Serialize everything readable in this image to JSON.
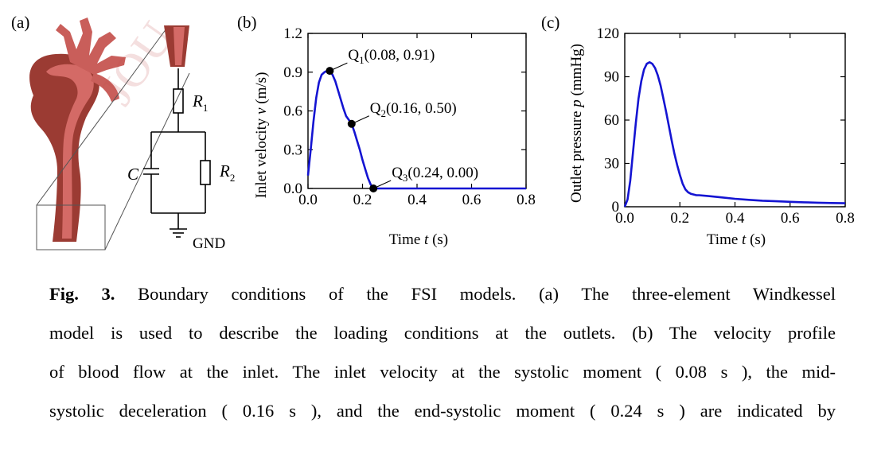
{
  "panels": {
    "a": {
      "label": "(a)",
      "r1_symbol": "R",
      "r1_sub": "1",
      "r2_symbol": "R",
      "r2_sub": "2",
      "c_symbol": "C",
      "gnd_label": "GND",
      "watermark": "JOU"
    },
    "b": {
      "label": "(b)"
    },
    "c": {
      "label": "(c)"
    }
  },
  "chart_data": [
    {
      "panel": "b",
      "type": "line",
      "xlabel_prefix": "Time ",
      "xlabel_var": "t",
      "xlabel_suffix": " (s)",
      "ylabel_prefix": "Inlet velocity ",
      "ylabel_var": "v",
      "ylabel_suffix": " (m/s)",
      "xlim": [
        0.0,
        0.8
      ],
      "ylim": [
        0.0,
        1.2
      ],
      "xticks": [
        "0.0",
        "0.2",
        "0.4",
        "0.6",
        "0.8"
      ],
      "xtick_values": [
        0.0,
        0.2,
        0.4,
        0.6,
        0.8
      ],
      "yticks": [
        "0.0",
        "0.3",
        "0.6",
        "0.9",
        "1.2"
      ],
      "ytick_values": [
        0.0,
        0.3,
        0.6,
        0.9,
        1.2
      ],
      "line_color": "#1414d2",
      "series": [
        {
          "x": [
            0.0,
            0.01,
            0.02,
            0.03,
            0.04,
            0.05,
            0.06,
            0.07,
            0.08,
            0.09,
            0.1,
            0.11,
            0.12,
            0.13,
            0.14,
            0.15,
            0.16,
            0.17,
            0.18,
            0.19,
            0.2,
            0.21,
            0.22,
            0.23,
            0.24,
            0.3,
            0.4,
            0.5,
            0.6,
            0.7,
            0.8
          ],
          "y": [
            0.1,
            0.3,
            0.52,
            0.7,
            0.82,
            0.88,
            0.9,
            0.91,
            0.91,
            0.88,
            0.83,
            0.76,
            0.69,
            0.62,
            0.56,
            0.53,
            0.5,
            0.44,
            0.37,
            0.3,
            0.22,
            0.15,
            0.08,
            0.03,
            0.0,
            0.0,
            0.0,
            0.0,
            0.0,
            0.0,
            0.0
          ]
        }
      ],
      "reference_line": {
        "y": 0.0,
        "x": [
          0.0,
          0.24
        ],
        "style": "dashed"
      },
      "annotations": [
        {
          "name": "Q",
          "sub": "1",
          "coords": "(0.08, 0.91)",
          "x": 0.08,
          "y": 0.91
        },
        {
          "name": "Q",
          "sub": "2",
          "coords": "(0.16, 0.50)",
          "x": 0.16,
          "y": 0.5
        },
        {
          "name": "Q",
          "sub": "3",
          "coords": "(0.24, 0.00)",
          "x": 0.24,
          "y": 0.0
        }
      ]
    },
    {
      "panel": "c",
      "type": "line",
      "xlabel_prefix": "Time ",
      "xlabel_var": "t",
      "xlabel_suffix": " (s)",
      "ylabel_prefix": "Outlet pressure ",
      "ylabel_var": "p",
      "ylabel_suffix": " (mmHg)",
      "xlim": [
        0.0,
        0.8
      ],
      "ylim": [
        0,
        120
      ],
      "xticks": [
        "0.0",
        "0.2",
        "0.4",
        "0.6",
        "0.8"
      ],
      "xtick_values": [
        0.0,
        0.2,
        0.4,
        0.6,
        0.8
      ],
      "yticks": [
        "0",
        "30",
        "60",
        "90",
        "120"
      ],
      "ytick_values": [
        0,
        30,
        60,
        90,
        120
      ],
      "line_color": "#1414d2",
      "series": [
        {
          "x": [
            0.0,
            0.01,
            0.02,
            0.03,
            0.04,
            0.05,
            0.06,
            0.07,
            0.08,
            0.09,
            0.1,
            0.11,
            0.12,
            0.13,
            0.14,
            0.15,
            0.16,
            0.17,
            0.18,
            0.19,
            0.2,
            0.21,
            0.22,
            0.23,
            0.24,
            0.25,
            0.26,
            0.27,
            0.3,
            0.35,
            0.4,
            0.45,
            0.5,
            0.55,
            0.6,
            0.65,
            0.7,
            0.75,
            0.8
          ],
          "y": [
            0,
            5,
            18,
            38,
            58,
            75,
            87,
            95,
            99,
            100,
            99,
            96,
            91,
            84,
            75,
            66,
            56,
            46,
            37,
            29,
            22,
            16,
            12,
            10,
            9,
            8.5,
            8,
            8,
            7.5,
            6.5,
            5.5,
            4.8,
            4.2,
            3.8,
            3.4,
            3.1,
            2.8,
            2.6,
            2.4
          ]
        }
      ]
    }
  ],
  "caption": {
    "fig_label": "Fig. 3.",
    "line1": "Boundary conditions of the FSI models. (a) The three-element Windkessel",
    "line2": "model is used to describe the loading conditions at the outlets. (b) The velocity profile",
    "line3": "of blood flow at the inlet. The inlet velocity at the systolic moment ( 0.08 s ), the mid-",
    "line4": "systolic deceleration ( 0.16 s ), and the end-systolic moment ( 0.24 s ) are indicated by"
  }
}
